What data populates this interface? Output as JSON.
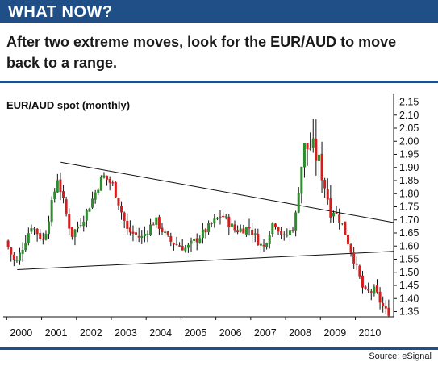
{
  "header": {
    "banner": "WHAT NOW?",
    "subtitle": "After two extreme moves, look for the EUR/AUD to move back to a range.",
    "source": "Source: eSignal"
  },
  "colors": {
    "banner_bg": "#1f4f86",
    "up_candle": "#2e8b2e",
    "down_candle": "#d11e1e",
    "wick": "#111111",
    "trendline": "#111111"
  },
  "chart_data": {
    "type": "candlestick",
    "title": "EUR/AUD spot (monthly)",
    "xlabel": "",
    "ylabel": "",
    "x_ticks": [
      "2000",
      "2001",
      "2002",
      "2003",
      "2004",
      "2005",
      "2006",
      "2007",
      "2008",
      "2009",
      "2010"
    ],
    "y_ticks": [
      "1.35",
      "1.40",
      "1.45",
      "1.50",
      "1.55",
      "1.60",
      "1.65",
      "1.70",
      "1.75",
      "1.80",
      "1.85",
      "1.90",
      "1.95",
      "2.00",
      "2.05",
      "2.10",
      "2.15"
    ],
    "xlim": [
      1999.9,
      2011.1
    ],
    "ylim": [
      1.33,
      2.17
    ],
    "y_axis_side": "right",
    "grid": false,
    "trendlines": [
      {
        "x": [
          2000.3,
          2011.1
        ],
        "y": [
          1.51,
          1.58
        ]
      },
      {
        "x": [
          2001.55,
          2011.1
        ],
        "y": [
          1.92,
          1.69
        ]
      }
    ],
    "anchor_closes": [
      {
        "t": 2000.0,
        "c": 1.62
      },
      {
        "t": 2000.3,
        "c": 1.53
      },
      {
        "t": 2000.75,
        "c": 1.68
      },
      {
        "t": 2001.1,
        "c": 1.62
      },
      {
        "t": 2001.5,
        "c": 1.86
      },
      {
        "t": 2001.9,
        "c": 1.64
      },
      {
        "t": 2002.3,
        "c": 1.72
      },
      {
        "t": 2002.8,
        "c": 1.87
      },
      {
        "t": 2003.1,
        "c": 1.83
      },
      {
        "t": 2003.5,
        "c": 1.66
      },
      {
        "t": 2003.9,
        "c": 1.63
      },
      {
        "t": 2004.3,
        "c": 1.7
      },
      {
        "t": 2004.7,
        "c": 1.62
      },
      {
        "t": 2005.2,
        "c": 1.59
      },
      {
        "t": 2005.6,
        "c": 1.64
      },
      {
        "t": 2006.2,
        "c": 1.72
      },
      {
        "t": 2006.6,
        "c": 1.66
      },
      {
        "t": 2007.0,
        "c": 1.67
      },
      {
        "t": 2007.4,
        "c": 1.59
      },
      {
        "t": 2007.7,
        "c": 1.7
      },
      {
        "t": 2008.0,
        "c": 1.63
      },
      {
        "t": 2008.3,
        "c": 1.68
      },
      {
        "t": 2008.55,
        "c": 1.97
      },
      {
        "t": 2008.8,
        "c": 1.98
      },
      {
        "t": 2009.05,
        "c": 1.9
      },
      {
        "t": 2009.3,
        "c": 1.76
      },
      {
        "t": 2009.65,
        "c": 1.69
      },
      {
        "t": 2010.0,
        "c": 1.55
      },
      {
        "t": 2010.3,
        "c": 1.42
      },
      {
        "t": 2010.6,
        "c": 1.43
      },
      {
        "t": 2010.9,
        "c": 1.35
      }
    ]
  }
}
